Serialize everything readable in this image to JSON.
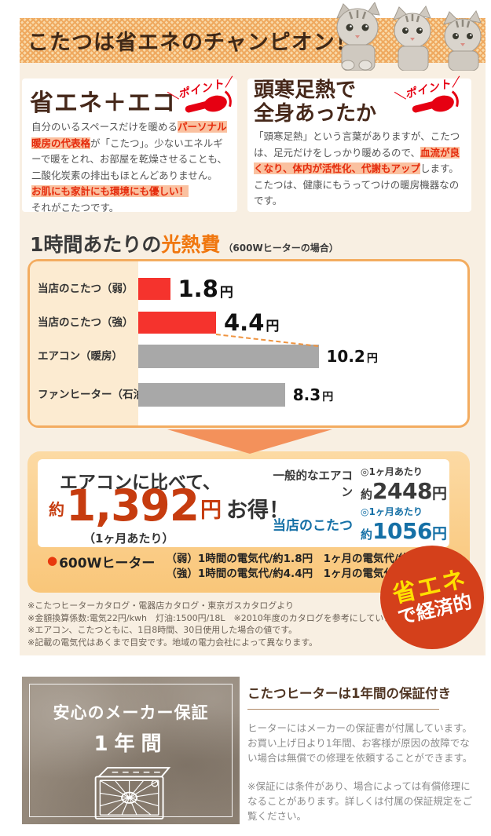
{
  "colors": {
    "accent": "#f0770f",
    "bar_red": "#f5332d",
    "bar_gray": "#a8a8a8",
    "highlight_bg": "#fac1a0",
    "highlight_text": "#e52b0c",
    "point_red": "#e60012",
    "big_red": "#c63c0f",
    "blue": "#1570a6",
    "badge_red": "#d4401b",
    "badge_yellow": "#ffe100",
    "panel_border": "#f3ac60",
    "dash": "#ef9440",
    "arrow": "#f3915b"
  },
  "banner": {
    "title": "こたつは省エネのチャンピオン！"
  },
  "point_badge": {
    "slash_left": "＼",
    "label": "ポイント",
    "slash_right": "／"
  },
  "eco_box": {
    "heading": "省エネ＋エコ",
    "parts": [
      {
        "text": "自分のいるスペースだけを暖める"
      },
      {
        "text": "パーソナル暖房の代表格",
        "highlight": true
      },
      {
        "text": "が「こたつ」。少ないエネルギーで暖をとれ、お部屋を乾燥させることも、二酸化炭素の排出もほとんどありません。"
      },
      {
        "text": "お肌にも家計にも環境にも優しい！",
        "highlight": true
      },
      {
        "text": "それがこたつです。"
      }
    ]
  },
  "warm_box": {
    "heading_line1": "頭寒足熱で",
    "heading_line2": "全身あったか",
    "parts": [
      {
        "text": "「頭寒足熱」という言葉がありますが、こたつは、足元だけをしっかり暖めるので、"
      },
      {
        "text": "血流が良くなり、体内が活性化、代謝もアップ",
        "highlight": true
      },
      {
        "text": "します。こたつは、健康にもうってつけの暖房機器なのです。"
      }
    ]
  },
  "chart_header": {
    "title_main": "1時間あたりの",
    "title_accent": "光熱費",
    "title_note": "（600Wヒーターの場合）"
  },
  "chart_data": {
    "type": "bar",
    "orientation": "horizontal",
    "title": "1時間あたりの光熱費（600Wヒーターの場合）",
    "unit": "円",
    "xlim": [
      0,
      12
    ],
    "grid": false,
    "legend": false,
    "categories": [
      "当店のこたつ（弱）",
      "当店のこたつ（強）",
      "エアコン（暖房）",
      "ファンヒーター（石油）"
    ],
    "values": [
      1.8,
      4.4,
      10.2,
      8.3
    ],
    "rows": [
      {
        "label": "当店のこたつ（弱）",
        "value": 1.8,
        "display": "1.8",
        "unit": "円",
        "color": "red"
      },
      {
        "label": "当店のこたつ（強）",
        "value": 4.4,
        "display": "4.4",
        "unit": "円",
        "color": "red"
      },
      {
        "label": "エアコン（暖房）",
        "value": 10.2,
        "display": "10.2",
        "unit": "円",
        "color": "gray"
      },
      {
        "label": "ファンヒーター（石油）",
        "value": 8.3,
        "display": "8.3",
        "unit": "円",
        "color": "gray"
      }
    ]
  },
  "savings": {
    "lead": "エアコンに比べて、",
    "approx": "約",
    "amount": "1,392",
    "unit": "円",
    "suffix": "お得！",
    "per_note": "（1ヶ月あたり）",
    "rows": [
      {
        "label": "一般的なエアコン",
        "per": "◎1ヶ月あたり",
        "approx": "約",
        "value": "2448",
        "unit": "円"
      },
      {
        "label": "当店のこたつ",
        "per": "◎1ヶ月あたり",
        "approx": "約",
        "value": "1056",
        "unit": "円"
      }
    ],
    "heater": {
      "bullet": "●",
      "label": "600Wヒーター",
      "lines": [
        "（弱）1時間の電気代/約1.8円　1ヶ月の電気代/約432円",
        "（強）1時間の電気代/約4.4円　1ヶ月の電気代/約1056円"
      ]
    },
    "badge": {
      "line1": "省エネ",
      "line2": "で経済的"
    }
  },
  "footnotes": [
    "※こたつヒーターカタログ・電器店カタログ・東京ガスカタログより",
    "※金額換算係数:電気22円/kwh　灯油:1500円/18L　※2010年度のカタログを参考にしています。",
    "※エアコン、こたつともに、1日8時間、30日使用した場合の値です。",
    "※記載の電気代はあくまで目安です。地域の電力会社によって異なります。"
  ],
  "warranty": {
    "box": {
      "title": "安心のメーカー保証",
      "period": "1年間"
    },
    "info": {
      "heading": "こたつヒーターは1年間の保証付き",
      "p1": "ヒーターにはメーカーの保証書が付属しています。お買い上げ日より1年間、お客様が原因の故障でない場合は無償での修理を依頼することができます。",
      "p2": "※保証には条件があり、場合によっては有償修理になることがあります。詳しくは付属の保証規定をご覧ください。"
    }
  }
}
